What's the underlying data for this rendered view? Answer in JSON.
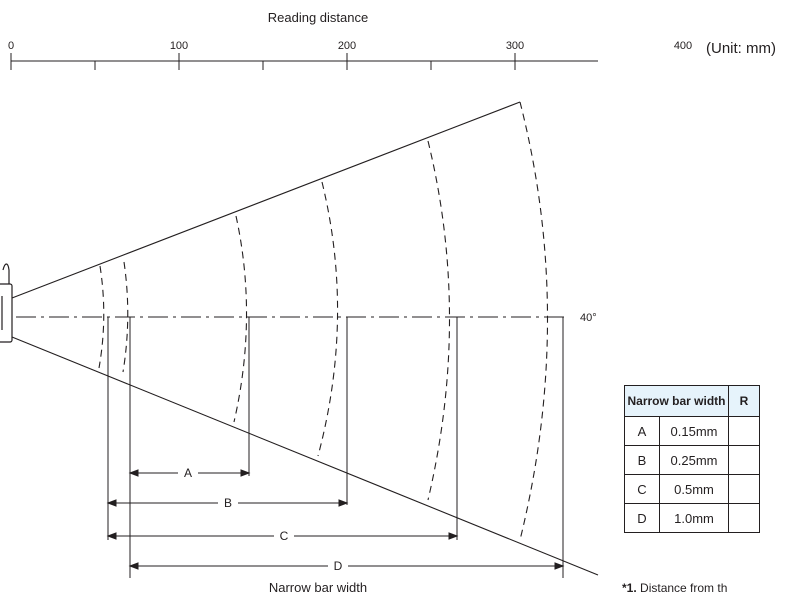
{
  "axis": {
    "title": "Reading distance",
    "unit": "(Unit: mm)",
    "ticks": [
      "0",
      "100",
      "200",
      "300",
      "400"
    ]
  },
  "angle_label": "40°",
  "bottom_label": "Narrow bar width",
  "ranges": [
    {
      "letter": "A",
      "width": "0.15mm"
    },
    {
      "letter": "B",
      "width": "0.25mm"
    },
    {
      "letter": "C",
      "width": "0.5mm"
    },
    {
      "letter": "D",
      "width": "1.0mm"
    }
  ],
  "table": {
    "header_width": "Narrow bar width",
    "header_range": "R"
  },
  "footnote": {
    "mark": "*1.",
    "text": " Distance from th"
  }
}
